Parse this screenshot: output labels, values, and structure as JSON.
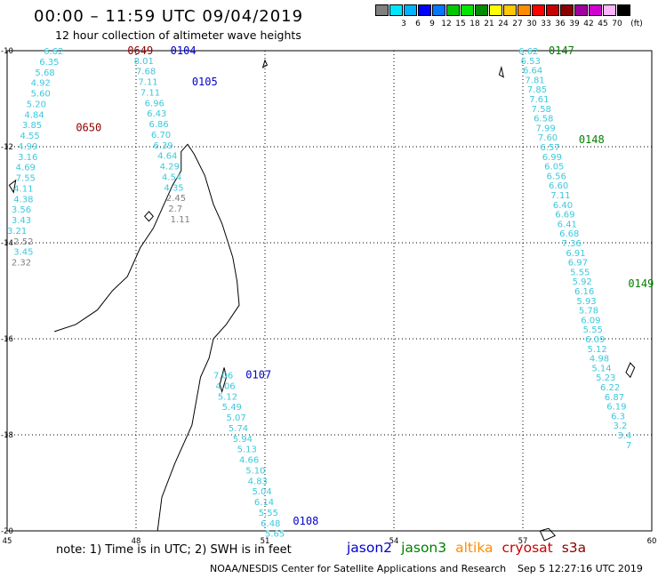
{
  "header": {
    "title": "00:00 – 11:59 UTC 09/04/2019",
    "subtitle": "12 hour collection of altimeter wave heights"
  },
  "scale": {
    "unit_label": "(ft)",
    "bins": [
      {
        "color": "#808080",
        "label": ""
      },
      {
        "color": "#00e5ff",
        "label": "3"
      },
      {
        "color": "#00b4ff",
        "label": "6"
      },
      {
        "color": "#0000ff",
        "label": "9"
      },
      {
        "color": "#0078ff",
        "label": "12"
      },
      {
        "color": "#00c800",
        "label": "15"
      },
      {
        "color": "#00e600",
        "label": "18"
      },
      {
        "color": "#008c00",
        "label": "21"
      },
      {
        "color": "#ffff00",
        "label": "24"
      },
      {
        "color": "#ffc800",
        "label": "27"
      },
      {
        "color": "#ff8c00",
        "label": "30"
      },
      {
        "color": "#ff0000",
        "label": "33"
      },
      {
        "color": "#c80000",
        "label": "36"
      },
      {
        "color": "#8c0000",
        "label": "39"
      },
      {
        "color": "#a000a0",
        "label": "42"
      },
      {
        "color": "#d200d2",
        "label": "45"
      },
      {
        "color": "#ffb4ff",
        "label": "70"
      },
      {
        "color": "#000000",
        "label": ""
      }
    ]
  },
  "axes": {
    "lon_labels": [
      "45",
      "48",
      "51",
      "54",
      "57",
      "60"
    ],
    "lat_labels": [
      "-10",
      "-12",
      "-14",
      "-16",
      "-18",
      "-20"
    ]
  },
  "map_data": {
    "region": {
      "lon_min": 45,
      "lon_max": 60,
      "lat_min": -20,
      "lat_max": -10
    },
    "passes": [
      {
        "id": "0649",
        "color": "#8b0000",
        "lon": 47.8,
        "lat": -10.0
      },
      {
        "id": "0104",
        "color": "#0000cd",
        "lon": 48.8,
        "lat": -10.0
      },
      {
        "id": "0105",
        "color": "#0000cd",
        "lon": 49.3,
        "lat": -10.65
      },
      {
        "id": "0650",
        "color": "#8b0000",
        "lon": 46.6,
        "lat": -11.6
      },
      {
        "id": "0147",
        "color": "#008000",
        "lon": 57.6,
        "lat": -10.0
      },
      {
        "id": "0148",
        "color": "#008000",
        "lon": 58.3,
        "lat": -11.85
      },
      {
        "id": "0149",
        "color": "#008000",
        "lon": 59.45,
        "lat": -14.85
      },
      {
        "id": "0107",
        "color": "#0000cd",
        "lon": 50.55,
        "lat": -16.75
      },
      {
        "id": "0108",
        "color": "#0000cd",
        "lon": 51.65,
        "lat": -19.8
      }
    ],
    "observations": [
      {
        "text": "6.62",
        "lon": 45.85,
        "lat": -10.0,
        "color": "#3cc8dc"
      },
      {
        "text": "6.35",
        "lon": 45.75,
        "lat": -10.22,
        "color": "#3cc8dc"
      },
      {
        "text": "5.68",
        "lon": 45.65,
        "lat": -10.44,
        "color": "#3cc8dc"
      },
      {
        "text": "4.92",
        "lon": 45.55,
        "lat": -10.66,
        "color": "#3cc8dc"
      },
      {
        "text": "5.60",
        "lon": 45.55,
        "lat": -10.88,
        "color": "#3cc8dc"
      },
      {
        "text": "5.20",
        "lon": 45.45,
        "lat": -11.1,
        "color": "#3cc8dc"
      },
      {
        "text": "4.84",
        "lon": 45.4,
        "lat": -11.32,
        "color": "#3cc8dc"
      },
      {
        "text": "3.85",
        "lon": 45.35,
        "lat": -11.54,
        "color": "#3cc8dc"
      },
      {
        "text": "4.55",
        "lon": 45.3,
        "lat": -11.76,
        "color": "#3cc8dc"
      },
      {
        "text": "4.99",
        "lon": 45.25,
        "lat": -11.98,
        "color": "#3cc8dc"
      },
      {
        "text": "3.16",
        "lon": 45.25,
        "lat": -12.2,
        "color": "#3cc8dc"
      },
      {
        "text": "4.69",
        "lon": 45.2,
        "lat": -12.42,
        "color": "#3cc8dc"
      },
      {
        "text": "7.55",
        "lon": 45.2,
        "lat": -12.64,
        "color": "#3cc8dc"
      },
      {
        "text": "4.11",
        "lon": 45.15,
        "lat": -12.86,
        "color": "#3cc8dc"
      },
      {
        "text": "4.38",
        "lon": 45.15,
        "lat": -13.08,
        "color": "#3cc8dc"
      },
      {
        "text": "3.56",
        "lon": 45.1,
        "lat": -13.3,
        "color": "#3cc8dc"
      },
      {
        "text": "3.43",
        "lon": 45.1,
        "lat": -13.52,
        "color": "#3cc8dc"
      },
      {
        "text": "3.21",
        "lon": 45.0,
        "lat": -13.74,
        "color": "#3cc8dc"
      },
      {
        "text": "2.52",
        "lon": 45.15,
        "lat": -13.96,
        "color": "#808080"
      },
      {
        "text": "3.45",
        "lon": 45.15,
        "lat": -14.18,
        "color": "#3cc8dc"
      },
      {
        "text": "2.32",
        "lon": 45.1,
        "lat": -14.4,
        "color": "#808080"
      },
      {
        "text": "8.01",
        "lon": 47.95,
        "lat": -10.2,
        "color": "#3cc8dc"
      },
      {
        "text": "7.68",
        "lon": 48.0,
        "lat": -10.42,
        "color": "#3cc8dc"
      },
      {
        "text": "7.11",
        "lon": 48.05,
        "lat": -10.64,
        "color": "#3cc8dc"
      },
      {
        "text": "7.11",
        "lon": 48.1,
        "lat": -10.86,
        "color": "#3cc8dc"
      },
      {
        "text": "6.96",
        "lon": 48.2,
        "lat": -11.08,
        "color": "#3cc8dc"
      },
      {
        "text": "6.43",
        "lon": 48.25,
        "lat": -11.3,
        "color": "#3cc8dc"
      },
      {
        "text": "6.86",
        "lon": 48.3,
        "lat": -11.52,
        "color": "#3cc8dc"
      },
      {
        "text": "6.70",
        "lon": 48.35,
        "lat": -11.74,
        "color": "#3cc8dc"
      },
      {
        "text": "6.39",
        "lon": 48.4,
        "lat": -11.96,
        "color": "#3cc8dc"
      },
      {
        "text": "4.64",
        "lon": 48.5,
        "lat": -12.18,
        "color": "#3cc8dc"
      },
      {
        "text": "4.29",
        "lon": 48.55,
        "lat": -12.4,
        "color": "#3cc8dc"
      },
      {
        "text": "4.54",
        "lon": 48.6,
        "lat": -12.62,
        "color": "#3cc8dc"
      },
      {
        "text": "4.35",
        "lon": 48.65,
        "lat": -12.84,
        "color": "#3cc8dc"
      },
      {
        "text": "2.45",
        "lon": 48.7,
        "lat": -13.06,
        "color": "#808080"
      },
      {
        "text": "2.7",
        "lon": 48.75,
        "lat": -13.28,
        "color": "#808080"
      },
      {
        "text": "1.11",
        "lon": 48.8,
        "lat": -13.5,
        "color": "#808080"
      },
      {
        "text": "6.62",
        "lon": 56.9,
        "lat": -10.0,
        "color": "#3cc8dc"
      },
      {
        "text": "6.53",
        "lon": 56.95,
        "lat": -10.2,
        "color": "#3cc8dc"
      },
      {
        "text": "6.64",
        "lon": 57.0,
        "lat": -10.4,
        "color": "#3cc8dc"
      },
      {
        "text": "7.81",
        "lon": 57.05,
        "lat": -10.6,
        "color": "#3cc8dc"
      },
      {
        "text": "7.85",
        "lon": 57.1,
        "lat": -10.8,
        "color": "#3cc8dc"
      },
      {
        "text": "7.61",
        "lon": 57.15,
        "lat": -11.0,
        "color": "#3cc8dc"
      },
      {
        "text": "7.58",
        "lon": 57.2,
        "lat": -11.2,
        "color": "#3cc8dc"
      },
      {
        "text": "6.58",
        "lon": 57.25,
        "lat": -11.4,
        "color": "#3cc8dc"
      },
      {
        "text": "7.99",
        "lon": 57.3,
        "lat": -11.6,
        "color": "#3cc8dc"
      },
      {
        "text": "7.60",
        "lon": 57.35,
        "lat": -11.8,
        "color": "#3cc8dc"
      },
      {
        "text": "6.57",
        "lon": 57.4,
        "lat": -12.0,
        "color": "#3cc8dc"
      },
      {
        "text": "6.99",
        "lon": 57.45,
        "lat": -12.2,
        "color": "#3cc8dc"
      },
      {
        "text": "6.05",
        "lon": 57.5,
        "lat": -12.4,
        "color": "#3cc8dc"
      },
      {
        "text": "6.56",
        "lon": 57.55,
        "lat": -12.6,
        "color": "#3cc8dc"
      },
      {
        "text": "6.60",
        "lon": 57.6,
        "lat": -12.8,
        "color": "#3cc8dc"
      },
      {
        "text": "7.11",
        "lon": 57.65,
        "lat": -13.0,
        "color": "#3cc8dc"
      },
      {
        "text": "6.40",
        "lon": 57.7,
        "lat": -13.2,
        "color": "#3cc8dc"
      },
      {
        "text": "6.69",
        "lon": 57.75,
        "lat": -13.4,
        "color": "#3cc8dc"
      },
      {
        "text": "6.41",
        "lon": 57.8,
        "lat": -13.6,
        "color": "#3cc8dc"
      },
      {
        "text": "6.68",
        "lon": 57.85,
        "lat": -13.8,
        "color": "#3cc8dc"
      },
      {
        "text": "7.36",
        "lon": 57.9,
        "lat": -14.0,
        "color": "#3cc8dc"
      },
      {
        "text": "6.91",
        "lon": 58.0,
        "lat": -14.2,
        "color": "#3cc8dc"
      },
      {
        "text": "6.97",
        "lon": 58.05,
        "lat": -14.4,
        "color": "#3cc8dc"
      },
      {
        "text": "5.55",
        "lon": 58.1,
        "lat": -14.6,
        "color": "#3cc8dc"
      },
      {
        "text": "5.92",
        "lon": 58.15,
        "lat": -14.8,
        "color": "#3cc8dc"
      },
      {
        "text": "6.16",
        "lon": 58.2,
        "lat": -15.0,
        "color": "#3cc8dc"
      },
      {
        "text": "5.93",
        "lon": 58.25,
        "lat": -15.2,
        "color": "#3cc8dc"
      },
      {
        "text": "5.78",
        "lon": 58.3,
        "lat": -15.4,
        "color": "#3cc8dc"
      },
      {
        "text": "6.09",
        "lon": 58.35,
        "lat": -15.6,
        "color": "#3cc8dc"
      },
      {
        "text": "5.55",
        "lon": 58.4,
        "lat": -15.8,
        "color": "#3cc8dc"
      },
      {
        "text": "6.09",
        "lon": 58.45,
        "lat": -16.0,
        "color": "#3cc8dc"
      },
      {
        "text": "5.12",
        "lon": 58.5,
        "lat": -16.2,
        "color": "#3cc8dc"
      },
      {
        "text": "4.98",
        "lon": 58.55,
        "lat": -16.4,
        "color": "#3cc8dc"
      },
      {
        "text": "5.14",
        "lon": 58.6,
        "lat": -16.6,
        "color": "#3cc8dc"
      },
      {
        "text": "5.23",
        "lon": 58.7,
        "lat": -16.8,
        "color": "#3cc8dc"
      },
      {
        "text": "6.22",
        "lon": 58.8,
        "lat": -17.0,
        "color": "#3cc8dc"
      },
      {
        "text": "6.87",
        "lon": 58.9,
        "lat": -17.2,
        "color": "#3cc8dc"
      },
      {
        "text": "6.19",
        "lon": 58.95,
        "lat": -17.4,
        "color": "#3cc8dc"
      },
      {
        "text": "6.3",
        "lon": 59.05,
        "lat": -17.6,
        "color": "#3cc8dc"
      },
      {
        "text": "3.2",
        "lon": 59.1,
        "lat": -17.8,
        "color": "#3cc8dc"
      },
      {
        "text": "3.4",
        "lon": 59.2,
        "lat": -18.0,
        "color": "#3cc8dc"
      },
      {
        "text": "7",
        "lon": 59.4,
        "lat": -18.2,
        "color": "#3cc8dc"
      },
      {
        "text": "7.06",
        "lon": 49.8,
        "lat": -16.75,
        "color": "#3cc8dc"
      },
      {
        "text": "4.06",
        "lon": 49.85,
        "lat": -16.97,
        "color": "#3cc8dc"
      },
      {
        "text": "5.12",
        "lon": 49.9,
        "lat": -17.19,
        "color": "#3cc8dc"
      },
      {
        "text": "5.49",
        "lon": 50.0,
        "lat": -17.41,
        "color": "#3cc8dc"
      },
      {
        "text": "5.07",
        "lon": 50.1,
        "lat": -17.63,
        "color": "#3cc8dc"
      },
      {
        "text": "5.74",
        "lon": 50.15,
        "lat": -17.85,
        "color": "#3cc8dc"
      },
      {
        "text": "5.94",
        "lon": 50.25,
        "lat": -18.07,
        "color": "#3cc8dc"
      },
      {
        "text": "5.13",
        "lon": 50.35,
        "lat": -18.29,
        "color": "#3cc8dc"
      },
      {
        "text": "4.66",
        "lon": 50.4,
        "lat": -18.51,
        "color": "#3cc8dc"
      },
      {
        "text": "5.10",
        "lon": 50.55,
        "lat": -18.73,
        "color": "#3cc8dc"
      },
      {
        "text": "4.83",
        "lon": 50.6,
        "lat": -18.95,
        "color": "#3cc8dc"
      },
      {
        "text": "5.04",
        "lon": 50.7,
        "lat": -19.17,
        "color": "#3cc8dc"
      },
      {
        "text": "6.14",
        "lon": 50.75,
        "lat": -19.39,
        "color": "#3cc8dc"
      },
      {
        "text": "5.55",
        "lon": 50.85,
        "lat": -19.61,
        "color": "#3cc8dc"
      },
      {
        "text": "6.48",
        "lon": 50.9,
        "lat": -19.83,
        "color": "#3cc8dc"
      },
      {
        "text": "5.65",
        "lon": 51.0,
        "lat": -20.05,
        "color": "#3cc8dc"
      }
    ],
    "coastline": [
      [
        48.5,
        -20.0
      ],
      [
        48.6,
        -19.3
      ],
      [
        48.9,
        -18.6
      ],
      [
        49.1,
        -18.2
      ],
      [
        49.3,
        -17.8
      ],
      [
        49.4,
        -17.3
      ],
      [
        49.5,
        -16.8
      ],
      [
        49.7,
        -16.4
      ],
      [
        49.8,
        -16.0
      ],
      [
        50.1,
        -15.7
      ],
      [
        50.4,
        -15.3
      ],
      [
        50.35,
        -14.8
      ],
      [
        50.25,
        -14.3
      ],
      [
        50.0,
        -13.6
      ],
      [
        49.8,
        -13.2
      ],
      [
        49.6,
        -12.6
      ],
      [
        49.35,
        -12.15
      ],
      [
        49.2,
        -11.95
      ],
      [
        49.05,
        -12.1
      ],
      [
        49.05,
        -12.5
      ],
      [
        48.85,
        -12.8
      ],
      [
        48.6,
        -13.3
      ],
      [
        48.4,
        -13.7
      ],
      [
        48.1,
        -14.1
      ],
      [
        47.8,
        -14.7
      ],
      [
        47.45,
        -15.0
      ],
      [
        47.1,
        -15.4
      ],
      [
        46.6,
        -15.7
      ],
      [
        46.1,
        -15.85
      ]
    ],
    "islands": [
      {
        "name": "",
        "points": [
          [
            50.05,
            -16.6
          ],
          [
            49.95,
            -16.95
          ],
          [
            50.0,
            -17.1
          ],
          [
            50.1,
            -16.8
          ]
        ]
      },
      {
        "name": "",
        "points": [
          [
            48.3,
            -13.35
          ],
          [
            48.2,
            -13.45
          ],
          [
            48.3,
            -13.55
          ],
          [
            48.4,
            -13.45
          ]
        ]
      },
      {
        "name": "",
        "points": [
          [
            57.4,
            -20.0
          ],
          [
            57.6,
            -19.95
          ],
          [
            57.75,
            -20.1
          ],
          [
            57.5,
            -20.2
          ]
        ]
      },
      {
        "name": "",
        "points": [
          [
            59.5,
            -16.5
          ],
          [
            59.4,
            -16.7
          ],
          [
            59.5,
            -16.8
          ],
          [
            59.6,
            -16.6
          ]
        ]
      },
      {
        "name": "",
        "points": [
          [
            45.2,
            -12.7
          ],
          [
            45.05,
            -12.8
          ],
          [
            45.15,
            -12.95
          ]
        ]
      },
      {
        "name": "",
        "points": [
          [
            51.0,
            -10.2
          ],
          [
            50.95,
            -10.35
          ],
          [
            51.05,
            -10.3
          ]
        ]
      },
      {
        "name": "",
        "points": [
          [
            56.5,
            -10.35
          ],
          [
            56.45,
            -10.5
          ],
          [
            56.55,
            -10.55
          ]
        ]
      }
    ]
  },
  "note": "note: 1) Time is in UTC; 2) SWH is in feet",
  "legend": [
    {
      "label": "jason2",
      "color": "#0000cd"
    },
    {
      "label": "jason3",
      "color": "#008000"
    },
    {
      "label": "altika",
      "color": "#ff8c00"
    },
    {
      "label": "cryosat",
      "color": "#cc0000"
    },
    {
      "label": "s3a",
      "color": "#8b0000"
    }
  ],
  "footer": {
    "source": "NOAA/NESDIS Center for Satellite Applications and Research",
    "timestamp": "Sep  5 12:27:16 UTC 2019"
  }
}
